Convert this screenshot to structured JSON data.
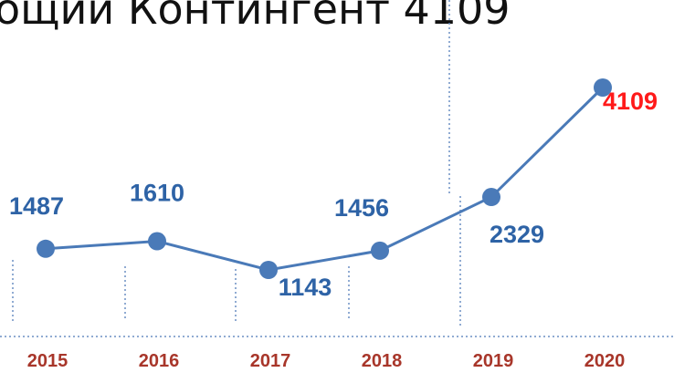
{
  "chart_data": {
    "type": "line",
    "title": "ощий Контингент  4109",
    "categories": [
      "2015",
      "2016",
      "2017",
      "2018",
      "2019",
      "2020"
    ],
    "series": [
      {
        "name": null,
        "color": "#4a7ab8",
        "values": [
          1487,
          1610,
          1143,
          1456,
          2329,
          4109
        ]
      }
    ],
    "highlight_color": "#ff1a1a",
    "category_color": "#a8362a"
  }
}
